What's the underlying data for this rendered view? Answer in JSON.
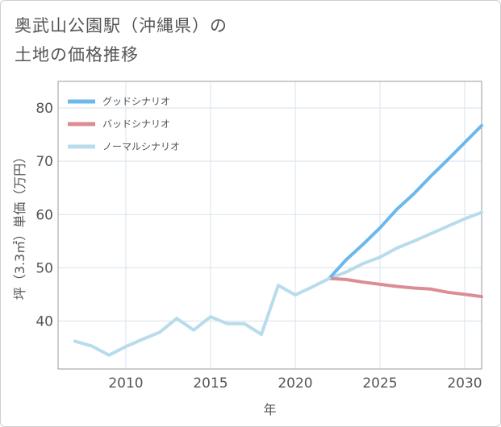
{
  "chart_data": {
    "type": "line",
    "title_lines": [
      "奥武山公園駅（沖縄県）の",
      "土地の価格推移"
    ],
    "xlabel": "年",
    "ylabel": "坪（3.3㎡）単価（万円）",
    "xlim": [
      2006,
      2031
    ],
    "ylim": [
      31,
      85
    ],
    "xticks": [
      2010,
      2015,
      2020,
      2025,
      2030
    ],
    "yticks": [
      40,
      50,
      60,
      70,
      80
    ],
    "history": {
      "x": [
        2007,
        2008,
        2009,
        2010,
        2011,
        2012,
        2013,
        2014,
        2015,
        2016,
        2017,
        2018,
        2019,
        2020,
        2021,
        2022
      ],
      "values": [
        36.2,
        35.3,
        33.6,
        35.2,
        36.6,
        37.9,
        40.5,
        38.3,
        40.8,
        39.5,
        39.5,
        37.5,
        46.7,
        44.9,
        46.4,
        48.0
      ]
    },
    "series": [
      {
        "name": "グッドシナリオ",
        "color": "#6cb8ea",
        "x": [
          2022,
          2023,
          2024,
          2025,
          2026,
          2027,
          2028,
          2029,
          2030,
          2031
        ],
        "values": [
          48.0,
          51.5,
          54.4,
          57.5,
          61.0,
          63.9,
          67.2,
          70.3,
          73.5,
          76.7
        ]
      },
      {
        "name": "バッドシナリオ",
        "color": "#dc8c95",
        "x": [
          2022,
          2023,
          2024,
          2025,
          2026,
          2027,
          2028,
          2029,
          2030,
          2031
        ],
        "values": [
          48.0,
          47.8,
          47.3,
          46.9,
          46.5,
          46.2,
          46.0,
          45.4,
          45.0,
          44.6
        ]
      },
      {
        "name": "ノーマルシナリオ",
        "color": "#b8dcec",
        "x": [
          2022,
          2023,
          2024,
          2025,
          2026,
          2027,
          2028,
          2029,
          2030,
          2031
        ],
        "values": [
          48.0,
          49.2,
          50.8,
          52.0,
          53.7,
          55.0,
          56.4,
          57.8,
          59.2,
          60.4
        ]
      }
    ]
  }
}
